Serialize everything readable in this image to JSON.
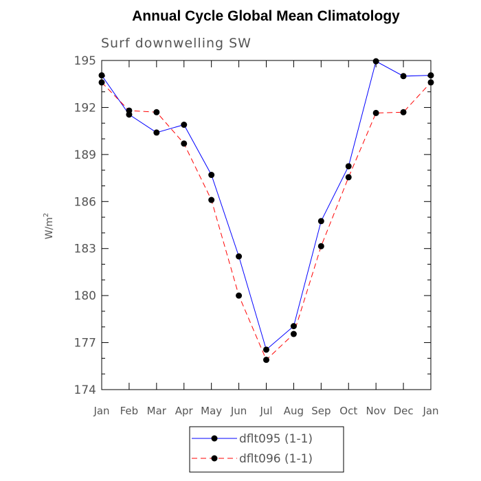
{
  "chart_data": {
    "type": "line",
    "title": "Annual Cycle Global Mean Climatology",
    "subtitle": "Surf downwelling SW",
    "xlabel": "",
    "ylabel": "W/m",
    "ylabel_superscript": "2",
    "categories": [
      "Jan",
      "Feb",
      "Mar",
      "Apr",
      "May",
      "Jun",
      "Jul",
      "Aug",
      "Sep",
      "Oct",
      "Nov",
      "Dec",
      "Jan"
    ],
    "yticks": [
      "174",
      "177",
      "180",
      "183",
      "186",
      "189",
      "192",
      "195"
    ],
    "ylim": [
      174,
      195
    ],
    "grid": false,
    "legend_position": "bottom-center",
    "series": [
      {
        "name": "dflt095 (1-1)",
        "color": "#0000ff",
        "dash": "solid",
        "marker": "filled-circle",
        "values": [
          194.05,
          191.55,
          190.4,
          190.9,
          187.7,
          182.5,
          176.55,
          178.05,
          184.75,
          188.25,
          194.95,
          194.0,
          194.05
        ]
      },
      {
        "name": "dflt096 (1-1)",
        "color": "#ff0000",
        "dash": "dashed",
        "marker": "filled-circle",
        "values": [
          193.6,
          191.8,
          191.7,
          189.7,
          186.1,
          180.0,
          175.9,
          177.55,
          183.15,
          187.55,
          191.65,
          191.7,
          193.6
        ]
      }
    ]
  }
}
